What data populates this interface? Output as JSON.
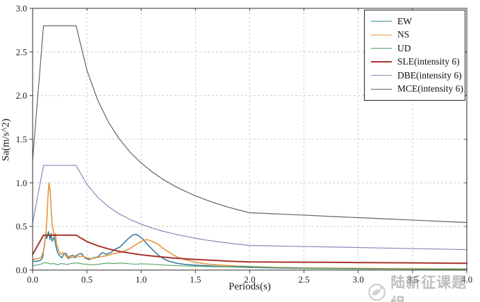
{
  "watermark": {
    "text": "陆新征课题组",
    "color": "#969696"
  },
  "figure": {
    "background": "#ffffff",
    "border_color": "#3c3c3c",
    "grid_color": "#c4c4c4",
    "tick_color": "#3c3c3c",
    "text_color": "#1a1a1a"
  },
  "chart_data": {
    "type": "line",
    "title": "",
    "xlabel": "Periods(s)",
    "ylabel": "Sa(m/s^2)",
    "xlim": [
      0,
      4.0
    ],
    "ylim": [
      0,
      3.0
    ],
    "grid": true,
    "grid_style": "dashed",
    "legend_position": "upper right",
    "xtick_labels": [
      "0.0",
      "0.5",
      "1.0",
      "1.5",
      "2.0",
      "2.5",
      "3.0",
      "3.5",
      "4.0"
    ],
    "ytick_labels": [
      "0.0",
      "0.5",
      "1.0",
      "1.5",
      "2.0",
      "2.5",
      "3.0"
    ],
    "series": [
      {
        "name": "EW",
        "color": "#3d7f9d",
        "line_width": 1.6,
        "points": [
          [
            0,
            0.1
          ],
          [
            0.04,
            0.1
          ],
          [
            0.07,
            0.11
          ],
          [
            0.09,
            0.14
          ],
          [
            0.11,
            0.3
          ],
          [
            0.12,
            0.42
          ],
          [
            0.13,
            0.36
          ],
          [
            0.145,
            0.44
          ],
          [
            0.16,
            0.35
          ],
          [
            0.17,
            0.42
          ],
          [
            0.18,
            0.33
          ],
          [
            0.2,
            0.38
          ],
          [
            0.215,
            0.27
          ],
          [
            0.23,
            0.2
          ],
          [
            0.25,
            0.16
          ],
          [
            0.27,
            0.14
          ],
          [
            0.29,
            0.19
          ],
          [
            0.31,
            0.19
          ],
          [
            0.33,
            0.13
          ],
          [
            0.35,
            0.16
          ],
          [
            0.37,
            0.17
          ],
          [
            0.39,
            0.14
          ],
          [
            0.42,
            0.18
          ],
          [
            0.45,
            0.19
          ],
          [
            0.48,
            0.14
          ],
          [
            0.52,
            0.12
          ],
          [
            0.56,
            0.14
          ],
          [
            0.6,
            0.15
          ],
          [
            0.64,
            0.2
          ],
          [
            0.68,
            0.18
          ],
          [
            0.72,
            0.2
          ],
          [
            0.76,
            0.24
          ],
          [
            0.8,
            0.26
          ],
          [
            0.84,
            0.31
          ],
          [
            0.88,
            0.36
          ],
          [
            0.92,
            0.4
          ],
          [
            0.95,
            0.41
          ],
          [
            0.98,
            0.39
          ],
          [
            1.02,
            0.35
          ],
          [
            1.06,
            0.29
          ],
          [
            1.1,
            0.24
          ],
          [
            1.14,
            0.19
          ],
          [
            1.18,
            0.15
          ],
          [
            1.22,
            0.12
          ],
          [
            1.26,
            0.1
          ],
          [
            1.32,
            0.08
          ],
          [
            1.4,
            0.065
          ],
          [
            1.5,
            0.055
          ],
          [
            1.6,
            0.05
          ],
          [
            1.75,
            0.04
          ],
          [
            1.9,
            0.035
          ],
          [
            2.0,
            0.03
          ],
          [
            2.25,
            0.025
          ],
          [
            2.5,
            0.02
          ],
          [
            3.0,
            0.015
          ],
          [
            3.5,
            0.012
          ],
          [
            4.0,
            0.01
          ]
        ]
      },
      {
        "name": "NS",
        "color": "#e2973f",
        "line_width": 1.6,
        "points": [
          [
            0,
            0.12
          ],
          [
            0.05,
            0.13
          ],
          [
            0.08,
            0.15
          ],
          [
            0.1,
            0.22
          ],
          [
            0.12,
            0.4
          ],
          [
            0.13,
            0.55
          ],
          [
            0.14,
            0.82
          ],
          [
            0.15,
            1.0
          ],
          [
            0.16,
            0.92
          ],
          [
            0.17,
            0.7
          ],
          [
            0.18,
            0.52
          ],
          [
            0.2,
            0.38
          ],
          [
            0.21,
            0.42
          ],
          [
            0.22,
            0.3
          ],
          [
            0.24,
            0.22
          ],
          [
            0.26,
            0.18
          ],
          [
            0.28,
            0.2
          ],
          [
            0.3,
            0.17
          ],
          [
            0.32,
            0.14
          ],
          [
            0.34,
            0.16
          ],
          [
            0.36,
            0.14
          ],
          [
            0.38,
            0.16
          ],
          [
            0.4,
            0.17
          ],
          [
            0.43,
            0.15
          ],
          [
            0.46,
            0.16
          ],
          [
            0.5,
            0.14
          ],
          [
            0.54,
            0.13
          ],
          [
            0.58,
            0.14
          ],
          [
            0.62,
            0.15
          ],
          [
            0.66,
            0.16
          ],
          [
            0.7,
            0.17
          ],
          [
            0.75,
            0.19
          ],
          [
            0.8,
            0.2
          ],
          [
            0.85,
            0.22
          ],
          [
            0.9,
            0.25
          ],
          [
            0.95,
            0.29
          ],
          [
            1.0,
            0.33
          ],
          [
            1.05,
            0.35
          ],
          [
            1.1,
            0.33
          ],
          [
            1.15,
            0.3
          ],
          [
            1.2,
            0.25
          ],
          [
            1.25,
            0.21
          ],
          [
            1.3,
            0.17
          ],
          [
            1.35,
            0.14
          ],
          [
            1.4,
            0.12
          ],
          [
            1.5,
            0.09
          ],
          [
            1.6,
            0.07
          ],
          [
            1.75,
            0.055
          ],
          [
            1.9,
            0.045
          ],
          [
            2.0,
            0.04
          ],
          [
            2.25,
            0.03
          ],
          [
            2.5,
            0.025
          ],
          [
            3.0,
            0.02
          ],
          [
            3.5,
            0.015
          ],
          [
            4.0,
            0.012
          ]
        ]
      },
      {
        "name": "UD",
        "color": "#4da05e",
        "line_width": 1.1,
        "points": [
          [
            0,
            0.05
          ],
          [
            0.05,
            0.06
          ],
          [
            0.08,
            0.07
          ],
          [
            0.11,
            0.085
          ],
          [
            0.14,
            0.08
          ],
          [
            0.17,
            0.07
          ],
          [
            0.2,
            0.075
          ],
          [
            0.23,
            0.06
          ],
          [
            0.26,
            0.075
          ],
          [
            0.29,
            0.07
          ],
          [
            0.32,
            0.065
          ],
          [
            0.35,
            0.075
          ],
          [
            0.38,
            0.08
          ],
          [
            0.42,
            0.08
          ],
          [
            0.46,
            0.07
          ],
          [
            0.5,
            0.065
          ],
          [
            0.55,
            0.06
          ],
          [
            0.6,
            0.065
          ],
          [
            0.65,
            0.075
          ],
          [
            0.7,
            0.08
          ],
          [
            0.75,
            0.075
          ],
          [
            0.8,
            0.08
          ],
          [
            0.85,
            0.078
          ],
          [
            0.9,
            0.072
          ],
          [
            0.95,
            0.068
          ],
          [
            1.0,
            0.072
          ],
          [
            1.1,
            0.068
          ],
          [
            1.2,
            0.058
          ],
          [
            1.3,
            0.052
          ],
          [
            1.4,
            0.048
          ],
          [
            1.5,
            0.044
          ],
          [
            1.6,
            0.04
          ],
          [
            1.8,
            0.036
          ],
          [
            1.95,
            0.045
          ],
          [
            2.05,
            0.04
          ],
          [
            2.2,
            0.03
          ],
          [
            2.5,
            0.022
          ],
          [
            3.0,
            0.016
          ],
          [
            3.5,
            0.012
          ],
          [
            4.0,
            0.01
          ]
        ]
      },
      {
        "name": "SLE(intensity 6)",
        "color": "#a8322d",
        "line_width": 2.0,
        "points": [
          [
            0,
            0.18
          ],
          [
            0.05,
            0.29
          ],
          [
            0.1,
            0.4
          ],
          [
            0.2,
            0.4
          ],
          [
            0.3,
            0.4
          ],
          [
            0.4,
            0.4
          ],
          [
            0.5,
            0.327
          ],
          [
            0.6,
            0.278
          ],
          [
            0.7,
            0.242
          ],
          [
            0.8,
            0.214
          ],
          [
            0.9,
            0.193
          ],
          [
            1.0,
            0.175
          ],
          [
            1.1,
            0.161
          ],
          [
            1.2,
            0.149
          ],
          [
            1.3,
            0.138
          ],
          [
            1.4,
            0.13
          ],
          [
            1.5,
            0.122
          ],
          [
            1.6,
            0.115
          ],
          [
            1.7,
            0.109
          ],
          [
            1.8,
            0.103
          ],
          [
            1.9,
            0.098
          ],
          [
            2.0,
            0.094
          ],
          [
            2.4,
            0.091
          ],
          [
            2.8,
            0.088
          ],
          [
            3.2,
            0.084
          ],
          [
            3.6,
            0.081
          ],
          [
            4.0,
            0.078
          ]
        ]
      },
      {
        "name": "DBE(intensity 6)",
        "color": "#8f84bd",
        "line_width": 1.2,
        "points": [
          [
            0,
            0.54
          ],
          [
            0.05,
            0.87
          ],
          [
            0.1,
            1.2
          ],
          [
            0.2,
            1.2
          ],
          [
            0.3,
            1.2
          ],
          [
            0.4,
            1.2
          ],
          [
            0.5,
            0.982
          ],
          [
            0.6,
            0.833
          ],
          [
            0.7,
            0.725
          ],
          [
            0.8,
            0.643
          ],
          [
            0.9,
            0.578
          ],
          [
            1.0,
            0.526
          ],
          [
            1.1,
            0.482
          ],
          [
            1.2,
            0.446
          ],
          [
            1.3,
            0.415
          ],
          [
            1.4,
            0.389
          ],
          [
            1.5,
            0.365
          ],
          [
            1.6,
            0.344
          ],
          [
            1.7,
            0.326
          ],
          [
            1.8,
            0.31
          ],
          [
            1.9,
            0.295
          ],
          [
            2.0,
            0.282
          ],
          [
            2.4,
            0.272
          ],
          [
            2.8,
            0.263
          ],
          [
            3.2,
            0.253
          ],
          [
            3.6,
            0.244
          ],
          [
            4.0,
            0.234
          ]
        ]
      },
      {
        "name": "MCE(intensity 6)",
        "color": "#6e615c",
        "line_width": 1.2,
        "points": [
          [
            0,
            1.26
          ],
          [
            0.05,
            2.03
          ],
          [
            0.1,
            2.8
          ],
          [
            0.2,
            2.8
          ],
          [
            0.3,
            2.8
          ],
          [
            0.4,
            2.8
          ],
          [
            0.5,
            2.29
          ],
          [
            0.6,
            1.944
          ],
          [
            0.7,
            1.692
          ],
          [
            0.8,
            1.5
          ],
          [
            0.9,
            1.349
          ],
          [
            1.0,
            1.227
          ],
          [
            1.1,
            1.126
          ],
          [
            1.2,
            1.041
          ],
          [
            1.3,
            0.968
          ],
          [
            1.4,
            0.906
          ],
          [
            1.5,
            0.851
          ],
          [
            1.6,
            0.803
          ],
          [
            1.7,
            0.76
          ],
          [
            1.8,
            0.722
          ],
          [
            1.9,
            0.688
          ],
          [
            2.0,
            0.657
          ],
          [
            2.4,
            0.635
          ],
          [
            2.8,
            0.612
          ],
          [
            3.2,
            0.59
          ],
          [
            3.6,
            0.567
          ],
          [
            4.0,
            0.545
          ]
        ]
      }
    ]
  }
}
